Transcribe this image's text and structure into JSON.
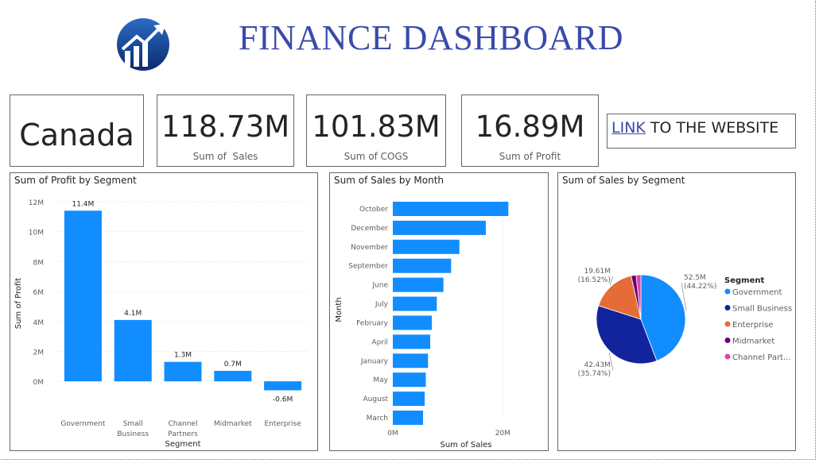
{
  "header": {
    "title": "FINANCE DASHBOARD",
    "logo_icon": "growth-chart-logo-icon"
  },
  "cards": {
    "country": "Canada",
    "sales": {
      "value": "118.73M",
      "caption": "Sum of  Sales"
    },
    "cogs": {
      "value": "101.83M",
      "caption": "Sum of COGS"
    },
    "profit": {
      "value": "16.89M",
      "caption": "Sum of Profit"
    }
  },
  "link": {
    "link_text": "LINK",
    "rest_text": " TO THE WEBSITE"
  },
  "colors": {
    "bar": "#118DFF",
    "government": "#118DFF",
    "small_business": "#12239E",
    "enterprise": "#E66C37",
    "midmarket": "#6B007B",
    "channel_partners": "#E044A7",
    "title": "#3a4aaa"
  },
  "chart_data": [
    {
      "type": "bar",
      "title": "Sum of Profit by Segment",
      "xlabel": "Segment",
      "ylabel": "Sum of Profit",
      "categories": [
        "Government",
        "Small Business",
        "Channel Partners",
        "Midmarket",
        "Enterprise"
      ],
      "category_lines": [
        [
          "Government"
        ],
        [
          "Small",
          "Business"
        ],
        [
          "Channel",
          "Partners"
        ],
        [
          "Midmarket"
        ],
        [
          "Enterprise"
        ]
      ],
      "values": [
        11.4,
        4.1,
        1.3,
        0.7,
        -0.6
      ],
      "data_labels": [
        "11.4M",
        "4.1M",
        "1.3M",
        "0.7M",
        "-0.6M"
      ],
      "ylim": [
        -1,
        12
      ],
      "yticks": [
        0,
        2,
        4,
        6,
        8,
        10,
        12
      ],
      "ytick_labels": [
        "0M",
        "2M",
        "4M",
        "6M",
        "8M",
        "10M",
        "12M"
      ],
      "grid": true
    },
    {
      "type": "bar",
      "orientation": "horizontal",
      "title": "Sum of Sales by Month",
      "xlabel": "Sum of Sales",
      "ylabel": "Month",
      "categories": [
        "October",
        "December",
        "November",
        "September",
        "June",
        "July",
        "February",
        "April",
        "January",
        "May",
        "August",
        "March"
      ],
      "values": [
        21.0,
        16.9,
        12.1,
        10.6,
        9.2,
        8.0,
        7.1,
        6.8,
        6.4,
        6.0,
        5.8,
        5.5
      ],
      "xlim": [
        0,
        25
      ],
      "xticks": [
        0,
        20
      ],
      "xtick_labels": [
        "0M",
        "20M"
      ],
      "grid": true
    },
    {
      "type": "pie",
      "title": "Sum of Sales by Segment",
      "legend_title": "Segment",
      "legend_position": "right",
      "categories": [
        "Government",
        "Small Business",
        "Enterprise",
        "Midmarket",
        "Channel Partners"
      ],
      "legend_labels": [
        "Government",
        "Small Business",
        "Enterprise",
        "Midmarket",
        "Channel Part..."
      ],
      "values": [
        52.5,
        42.43,
        19.61,
        2.14,
        2.05
      ],
      "percent": [
        44.22,
        35.74,
        16.52,
        1.8,
        1.72
      ],
      "data_labels": [
        {
          "value": "52.5M",
          "percent": "(44.22%)"
        },
        {
          "value": "42.43M",
          "percent": "(35.74%)"
        },
        {
          "value": "19.61M",
          "percent": "(16.52%)"
        }
      ]
    }
  ]
}
